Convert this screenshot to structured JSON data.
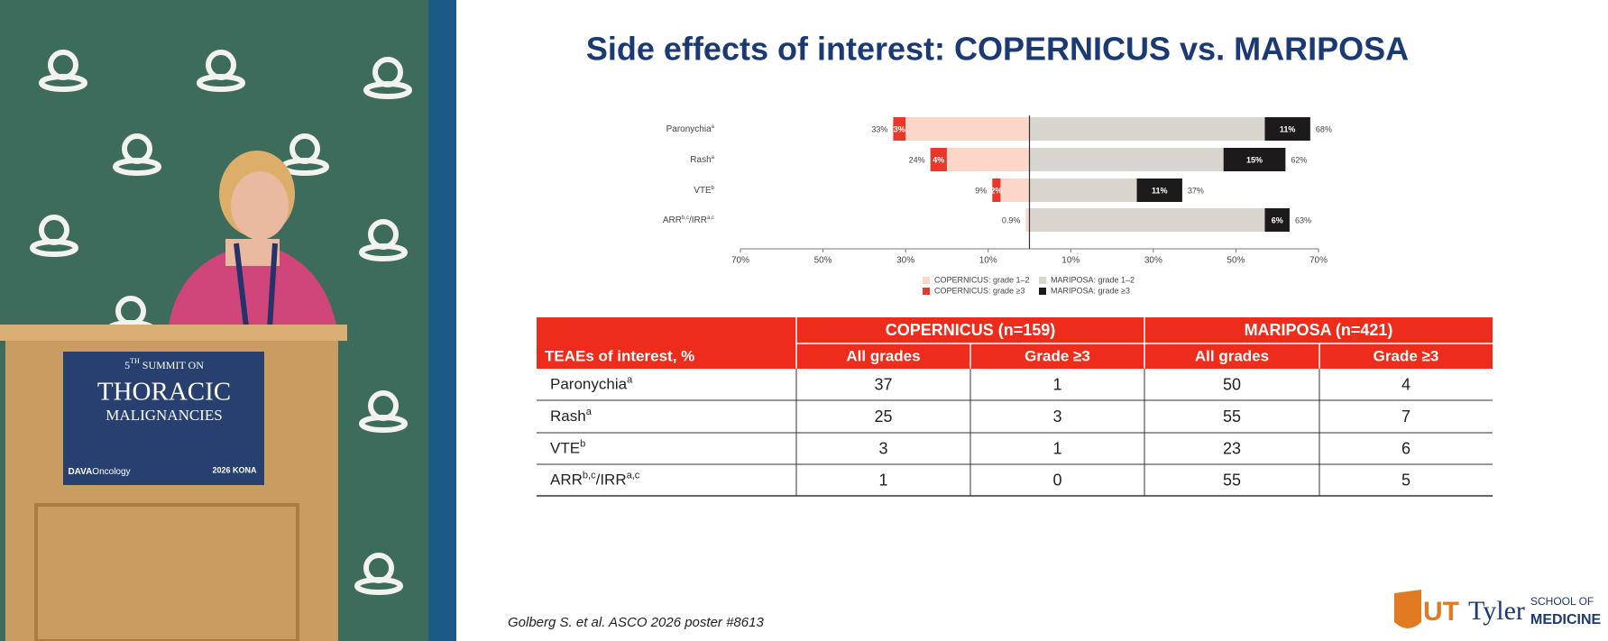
{
  "backdrop": {
    "sign": {
      "edition": [
        "5",
        "TH",
        " SUMMIT ON"
      ],
      "line2": "THORACIC",
      "line3": "MALIGNANCIES",
      "sponsor": [
        "DAVA",
        "Oncology"
      ],
      "event": "2026 KONA"
    }
  },
  "slide": {
    "title": "Side effects of interest: COPERNICUS vs. MARIPOSA",
    "citation": "Golberg S. et al. ASCO 2026 poster #8613",
    "logo": {
      "mark": "UT",
      "name": "Tyler",
      "school": "SCHOOL OF",
      "medicine": "MEDICINE"
    }
  },
  "chart_data": {
    "type": "bar",
    "orientation": "horizontal",
    "legend": "bottom",
    "grid": false,
    "categories": [
      [
        "Paronychia",
        "a"
      ],
      [
        "Rash",
        "a"
      ],
      [
        "VTE",
        "b"
      ],
      [
        "ARR",
        "b,c",
        "/IRR",
        "a,c"
      ]
    ],
    "series": [
      {
        "name": "COPERNICUS: grade 1–2",
        "side": "left",
        "color": "#fcd6c9",
        "values": [
          30,
          20,
          7,
          0.9
        ]
      },
      {
        "name": "COPERNICUS: grade ≥3",
        "side": "left",
        "color": "#e8382b",
        "values": [
          3,
          4,
          2,
          null
        ],
        "value_labels": [
          "3%",
          "4%",
          "2%",
          null
        ]
      },
      {
        "name": "MARIPOSA: grade 1–2",
        "side": "right",
        "color": "#d8d5cf",
        "values": [
          57,
          47,
          26,
          57
        ]
      },
      {
        "name": "MARIPOSA: grade ≥3",
        "side": "right",
        "color": "#1c1a1b",
        "values": [
          11,
          15,
          11,
          6
        ],
        "value_labels": [
          "11%",
          "15%",
          "11%",
          "6%"
        ]
      }
    ],
    "totals": [
      {
        "side": "left",
        "values": [
          33,
          24,
          9,
          0.9
        ],
        "value_labels": [
          "33%",
          "24%",
          "9%",
          "0.9%"
        ]
      },
      {
        "side": "right",
        "values": [
          68,
          62,
          37,
          63
        ],
        "value_labels": [
          "68%",
          "62%",
          "37%",
          "63%"
        ]
      }
    ],
    "xlim": [
      -70,
      70
    ],
    "xticks": [
      {
        "value": -70,
        "label": "70%"
      },
      {
        "value": -50,
        "label": "50%"
      },
      {
        "value": -30,
        "label": "30%"
      },
      {
        "value": -10,
        "label": "10%"
      },
      {
        "value": 10,
        "label": "10%"
      },
      {
        "value": 30,
        "label": "30%"
      },
      {
        "value": 50,
        "label": "50%"
      },
      {
        "value": 70,
        "label": "70%"
      }
    ]
  },
  "table": {
    "row_header": "TEAEs of interest, %",
    "group_headers": [
      "COPERNICUS (n=159)",
      "MARIPOSA (n=421)"
    ],
    "sub_headers": [
      "All grades",
      "Grade ≥3",
      "All grades",
      "Grade ≥3"
    ],
    "rows": [
      {
        "label": [
          "Paronychia",
          "a"
        ],
        "cells": [
          37,
          1,
          50,
          4
        ]
      },
      {
        "label": [
          "Rash",
          "a"
        ],
        "cells": [
          25,
          3,
          55,
          7
        ]
      },
      {
        "label": [
          "VTE",
          "b"
        ],
        "cells": [
          3,
          1,
          23,
          6
        ]
      },
      {
        "label": [
          "ARR",
          "b,c",
          "/IRR",
          "a,c"
        ],
        "cells": [
          1,
          0,
          55,
          5
        ]
      }
    ]
  }
}
